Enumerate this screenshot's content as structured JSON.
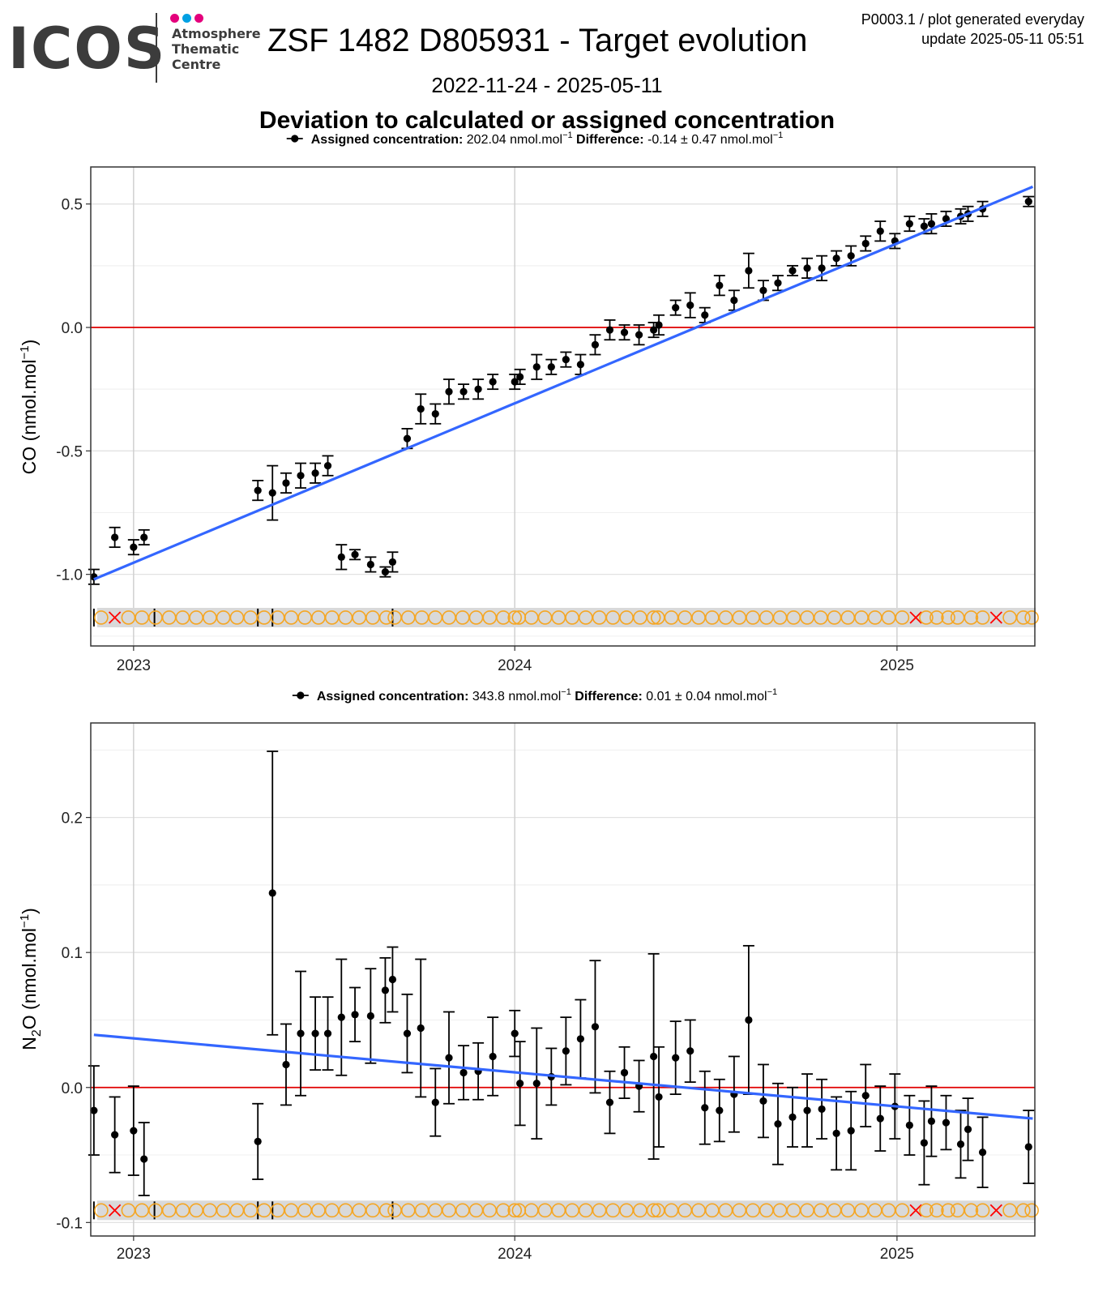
{
  "header": {
    "logo_text": "ICOS",
    "logo_sub1": "Atmosphere",
    "logo_sub2": "Thematic",
    "logo_sub3": "Centre",
    "logo_dot_colors": [
      "#e4007c",
      "#00a0e3",
      "#e4007c"
    ],
    "title": "ZSF 1482 D805931 - Target evolution",
    "info_line1": "P0003.1 / plot generated everyday",
    "info_line2": "update  2025-05-11 05:51",
    "date_range": "2022-11-24 - 2025-05-11",
    "subtitle": "Deviation to calculated or assigned concentration"
  },
  "colors": {
    "points": "#000000",
    "trend": "#3366ff",
    "zero_line": "#e00000",
    "flag_circle": "#f5a623",
    "flag_cross": "#ff0000",
    "flag_band": "#d9d9d9"
  },
  "chart_data": [
    {
      "type": "scatter",
      "legend_label": "Assigned concentration:",
      "legend_value": "202.04 nmol.mol",
      "legend_diff_label": "Difference:",
      "legend_diff_value": "-0.14 ± 0.47 nmol.mol",
      "ylabel": "CO (nmol.mol",
      "xlim": [
        "2022-11-21",
        "2025-05-13"
      ],
      "ylim": [
        -1.29,
        0.65
      ],
      "yticks": [
        -1.0,
        -0.5,
        0.0,
        0.5
      ],
      "ytick_labels": [
        "-1.0",
        "-0.5",
        "0.0",
        "0.5"
      ],
      "xticks": [
        "2023-01-01",
        "2024-01-01",
        "2025-01-01"
      ],
      "xtick_labels": [
        "2023",
        "2024",
        "2025"
      ],
      "grid": true,
      "zero_line": 0,
      "trend": {
        "x": [
          "2022-11-24",
          "2025-05-11"
        ],
        "y": [
          -1.02,
          0.57
        ]
      },
      "flag_y": -1.175,
      "points": [
        {
          "x": "2022-11-24",
          "y": -1.01,
          "err": 0.03
        },
        {
          "x": "2022-12-14",
          "y": -0.85,
          "err": 0.04
        },
        {
          "x": "2023-01-01",
          "y": -0.89,
          "err": 0.03
        },
        {
          "x": "2023-01-11",
          "y": -0.85,
          "err": 0.03
        },
        {
          "x": "2023-04-30",
          "y": -0.66,
          "err": 0.04
        },
        {
          "x": "2023-05-14",
          "y": -0.67,
          "err": 0.11
        },
        {
          "x": "2023-05-27",
          "y": -0.63,
          "err": 0.04
        },
        {
          "x": "2023-06-10",
          "y": -0.6,
          "err": 0.05
        },
        {
          "x": "2023-06-24",
          "y": -0.59,
          "err": 0.04
        },
        {
          "x": "2023-07-06",
          "y": -0.56,
          "err": 0.04
        },
        {
          "x": "2023-07-19",
          "y": -0.93,
          "err": 0.05
        },
        {
          "x": "2023-08-01",
          "y": -0.92,
          "err": 0.02
        },
        {
          "x": "2023-08-16",
          "y": -0.96,
          "err": 0.03
        },
        {
          "x": "2023-08-30",
          "y": -0.99,
          "err": 0.02
        },
        {
          "x": "2023-09-06",
          "y": -0.95,
          "err": 0.04
        },
        {
          "x": "2023-09-20",
          "y": -0.45,
          "err": 0.04
        },
        {
          "x": "2023-10-03",
          "y": -0.33,
          "err": 0.06
        },
        {
          "x": "2023-10-17",
          "y": -0.35,
          "err": 0.04
        },
        {
          "x": "2023-10-30",
          "y": -0.26,
          "err": 0.05
        },
        {
          "x": "2023-11-13",
          "y": -0.26,
          "err": 0.03
        },
        {
          "x": "2023-11-27",
          "y": -0.25,
          "err": 0.04
        },
        {
          "x": "2023-12-11",
          "y": -0.22,
          "err": 0.03
        },
        {
          "x": "2024-01-01",
          "y": -0.22,
          "err": 0.03
        },
        {
          "x": "2024-01-06",
          "y": -0.2,
          "err": 0.03
        },
        {
          "x": "2024-01-22",
          "y": -0.16,
          "err": 0.05
        },
        {
          "x": "2024-02-05",
          "y": -0.16,
          "err": 0.03
        },
        {
          "x": "2024-02-19",
          "y": -0.13,
          "err": 0.03
        },
        {
          "x": "2024-03-04",
          "y": -0.15,
          "err": 0.04
        },
        {
          "x": "2024-03-18",
          "y": -0.07,
          "err": 0.04
        },
        {
          "x": "2024-04-01",
          "y": -0.01,
          "err": 0.04
        },
        {
          "x": "2024-04-15",
          "y": -0.02,
          "err": 0.03
        },
        {
          "x": "2024-04-29",
          "y": -0.03,
          "err": 0.04
        },
        {
          "x": "2024-05-13",
          "y": -0.01,
          "err": 0.03
        },
        {
          "x": "2024-05-18",
          "y": 0.01,
          "err": 0.04
        },
        {
          "x": "2024-06-03",
          "y": 0.08,
          "err": 0.03
        },
        {
          "x": "2024-06-17",
          "y": 0.09,
          "err": 0.05
        },
        {
          "x": "2024-07-01",
          "y": 0.05,
          "err": 0.03
        },
        {
          "x": "2024-07-15",
          "y": 0.17,
          "err": 0.04
        },
        {
          "x": "2024-07-29",
          "y": 0.11,
          "err": 0.04
        },
        {
          "x": "2024-08-12",
          "y": 0.23,
          "err": 0.07
        },
        {
          "x": "2024-08-26",
          "y": 0.15,
          "err": 0.04
        },
        {
          "x": "2024-09-09",
          "y": 0.18,
          "err": 0.03
        },
        {
          "x": "2024-09-23",
          "y": 0.23,
          "err": 0.02
        },
        {
          "x": "2024-10-07",
          "y": 0.24,
          "err": 0.04
        },
        {
          "x": "2024-10-21",
          "y": 0.24,
          "err": 0.05
        },
        {
          "x": "2024-11-04",
          "y": 0.28,
          "err": 0.03
        },
        {
          "x": "2024-11-18",
          "y": 0.29,
          "err": 0.04
        },
        {
          "x": "2024-12-02",
          "y": 0.34,
          "err": 0.03
        },
        {
          "x": "2024-12-16",
          "y": 0.39,
          "err": 0.04
        },
        {
          "x": "2024-12-30",
          "y": 0.35,
          "err": 0.03
        },
        {
          "x": "2025-01-13",
          "y": 0.42,
          "err": 0.03
        },
        {
          "x": "2025-01-27",
          "y": 0.41,
          "err": 0.03
        },
        {
          "x": "2025-02-03",
          "y": 0.42,
          "err": 0.04
        },
        {
          "x": "2025-02-17",
          "y": 0.44,
          "err": 0.03
        },
        {
          "x": "2025-03-03",
          "y": 0.45,
          "err": 0.03
        },
        {
          "x": "2025-03-10",
          "y": 0.46,
          "err": 0.03
        },
        {
          "x": "2025-03-24",
          "y": 0.48,
          "err": 0.03
        },
        {
          "x": "2025-05-07",
          "y": 0.51,
          "err": 0.02
        }
      ]
    },
    {
      "type": "scatter",
      "legend_label": "Assigned concentration:",
      "legend_value": "343.8 nmol.mol",
      "legend_diff_label": "Difference:",
      "legend_diff_value": "0.01 ± 0.04 nmol.mol",
      "ylabel": "N",
      "xlim": [
        "2022-11-21",
        "2025-05-13"
      ],
      "ylim": [
        -0.11,
        0.27
      ],
      "yticks": [
        -0.1,
        0.0,
        0.1,
        0.2
      ],
      "ytick_labels": [
        "-0.1",
        "0.0",
        "0.1",
        "0.2"
      ],
      "xticks": [
        "2023-01-01",
        "2024-01-01",
        "2025-01-01"
      ],
      "xtick_labels": [
        "2023",
        "2024",
        "2025"
      ],
      "grid": true,
      "zero_line": 0,
      "trend": {
        "x": [
          "2022-11-24",
          "2025-05-11"
        ],
        "y": [
          0.039,
          -0.023
        ]
      },
      "flag_y": -0.091,
      "points": [
        {
          "x": "2022-11-24",
          "y": -0.017,
          "err": 0.033
        },
        {
          "x": "2022-12-14",
          "y": -0.035,
          "err": 0.028
        },
        {
          "x": "2023-01-01",
          "y": -0.032,
          "err": 0.033
        },
        {
          "x": "2023-01-11",
          "y": -0.053,
          "err": 0.027
        },
        {
          "x": "2023-04-30",
          "y": -0.04,
          "err": 0.028
        },
        {
          "x": "2023-05-14",
          "y": 0.144,
          "err": 0.105
        },
        {
          "x": "2023-05-27",
          "y": 0.017,
          "err": 0.03
        },
        {
          "x": "2023-06-10",
          "y": 0.04,
          "err": 0.046
        },
        {
          "x": "2023-06-24",
          "y": 0.04,
          "err": 0.027
        },
        {
          "x": "2023-07-06",
          "y": 0.04,
          "err": 0.027
        },
        {
          "x": "2023-07-19",
          "y": 0.052,
          "err": 0.043
        },
        {
          "x": "2023-08-01",
          "y": 0.054,
          "err": 0.02
        },
        {
          "x": "2023-08-16",
          "y": 0.053,
          "err": 0.035
        },
        {
          "x": "2023-08-30",
          "y": 0.072,
          "err": 0.024
        },
        {
          "x": "2023-09-06",
          "y": 0.08,
          "err": 0.024
        },
        {
          "x": "2023-09-20",
          "y": 0.04,
          "err": 0.029
        },
        {
          "x": "2023-10-03",
          "y": 0.044,
          "err": 0.051
        },
        {
          "x": "2023-10-17",
          "y": -0.011,
          "err": 0.025
        },
        {
          "x": "2023-10-30",
          "y": 0.022,
          "err": 0.034
        },
        {
          "x": "2023-11-13",
          "y": 0.011,
          "err": 0.02
        },
        {
          "x": "2023-11-27",
          "y": 0.012,
          "err": 0.021
        },
        {
          "x": "2023-12-11",
          "y": 0.023,
          "err": 0.029
        },
        {
          "x": "2024-01-01",
          "y": 0.04,
          "err": 0.017
        },
        {
          "x": "2024-01-06",
          "y": 0.003,
          "err": 0.031
        },
        {
          "x": "2024-01-22",
          "y": 0.003,
          "err": 0.041
        },
        {
          "x": "2024-02-05",
          "y": 0.008,
          "err": 0.021
        },
        {
          "x": "2024-02-19",
          "y": 0.027,
          "err": 0.025
        },
        {
          "x": "2024-03-04",
          "y": 0.036,
          "err": 0.029
        },
        {
          "x": "2024-03-18",
          "y": 0.045,
          "err": 0.049
        },
        {
          "x": "2024-04-01",
          "y": -0.011,
          "err": 0.023
        },
        {
          "x": "2024-04-15",
          "y": 0.011,
          "err": 0.019
        },
        {
          "x": "2024-04-29",
          "y": 0.001,
          "err": 0.019
        },
        {
          "x": "2024-05-13",
          "y": 0.023,
          "err": 0.076
        },
        {
          "x": "2024-05-18",
          "y": -0.007,
          "err": 0.037
        },
        {
          "x": "2024-06-03",
          "y": 0.022,
          "err": 0.027
        },
        {
          "x": "2024-06-17",
          "y": 0.027,
          "err": 0.023
        },
        {
          "x": "2024-07-01",
          "y": -0.015,
          "err": 0.027
        },
        {
          "x": "2024-07-15",
          "y": -0.017,
          "err": 0.023
        },
        {
          "x": "2024-07-29",
          "y": -0.005,
          "err": 0.028
        },
        {
          "x": "2024-08-12",
          "y": 0.05,
          "err": 0.055
        },
        {
          "x": "2024-08-26",
          "y": -0.01,
          "err": 0.027
        },
        {
          "x": "2024-09-09",
          "y": -0.027,
          "err": 0.03
        },
        {
          "x": "2024-09-23",
          "y": -0.022,
          "err": 0.022
        },
        {
          "x": "2024-10-07",
          "y": -0.017,
          "err": 0.027
        },
        {
          "x": "2024-10-21",
          "y": -0.016,
          "err": 0.022
        },
        {
          "x": "2024-11-04",
          "y": -0.034,
          "err": 0.027
        },
        {
          "x": "2024-11-18",
          "y": -0.032,
          "err": 0.029
        },
        {
          "x": "2024-12-02",
          "y": -0.006,
          "err": 0.023
        },
        {
          "x": "2024-12-16",
          "y": -0.023,
          "err": 0.024
        },
        {
          "x": "2024-12-30",
          "y": -0.014,
          "err": 0.024
        },
        {
          "x": "2025-01-13",
          "y": -0.028,
          "err": 0.022
        },
        {
          "x": "2025-01-27",
          "y": -0.041,
          "err": 0.031
        },
        {
          "x": "2025-02-03",
          "y": -0.025,
          "err": 0.026
        },
        {
          "x": "2025-02-17",
          "y": -0.026,
          "err": 0.02
        },
        {
          "x": "2025-03-03",
          "y": -0.042,
          "err": 0.025
        },
        {
          "x": "2025-03-10",
          "y": -0.031,
          "err": 0.023
        },
        {
          "x": "2025-03-24",
          "y": -0.048,
          "err": 0.026
        },
        {
          "x": "2025-05-07",
          "y": -0.044,
          "err": 0.027
        }
      ]
    }
  ],
  "flags": {
    "dates": [
      "2022-12-01",
      "2022-12-14",
      "2022-12-27",
      "2023-01-09",
      "2023-01-22",
      "2023-02-04",
      "2023-02-17",
      "2023-03-02",
      "2023-03-15",
      "2023-03-28",
      "2023-04-10",
      "2023-04-23",
      "2023-05-06",
      "2023-05-19",
      "2023-06-01",
      "2023-06-14",
      "2023-06-27",
      "2023-07-10",
      "2023-07-23",
      "2023-08-05",
      "2023-08-18",
      "2023-08-31",
      "2023-09-08",
      "2023-09-21",
      "2023-10-04",
      "2023-10-17",
      "2023-10-30",
      "2023-11-12",
      "2023-11-25",
      "2023-12-08",
      "2023-12-21",
      "2024-01-01",
      "2024-01-05",
      "2024-01-17",
      "2024-01-30",
      "2024-02-12",
      "2024-02-25",
      "2024-03-09",
      "2024-03-22",
      "2024-04-04",
      "2024-04-17",
      "2024-04-30",
      "2024-05-13",
      "2024-05-17",
      "2024-05-30",
      "2024-06-12",
      "2024-06-25",
      "2024-07-08",
      "2024-07-21",
      "2024-08-03",
      "2024-08-16",
      "2024-08-29",
      "2024-09-11",
      "2024-09-24",
      "2024-10-07",
      "2024-10-20",
      "2024-11-02",
      "2024-11-15",
      "2024-11-28",
      "2024-12-11",
      "2024-12-24",
      "2025-01-06",
      "2025-01-19",
      "2025-01-29",
      "2025-02-08",
      "2025-02-19",
      "2025-02-28",
      "2025-03-13",
      "2025-03-24",
      "2025-04-06",
      "2025-04-19",
      "2025-05-02",
      "2025-05-10"
    ],
    "cross_dates": [
      "2022-12-14",
      "2025-01-19",
      "2025-04-06"
    ],
    "tick_dates": [
      "2022-11-24",
      "2023-01-21",
      "2023-04-30",
      "2023-05-14",
      "2023-09-06"
    ]
  }
}
